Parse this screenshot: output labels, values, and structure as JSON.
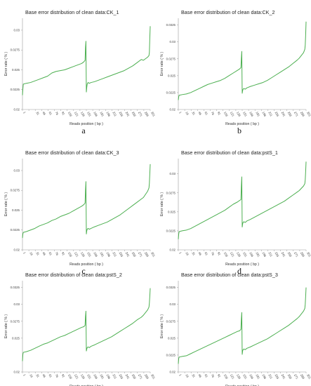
{
  "figure": {
    "panels": [
      {
        "letter": "a"
      },
      {
        "letter": "b"
      },
      {
        "letter": "c"
      },
      {
        "letter": "d"
      },
      {
        "letter": "e"
      },
      {
        "letter": "f"
      }
    ]
  },
  "chart_data": [
    {
      "type": "line",
      "title": "Base error distribution of clean data:CK_1",
      "xlabel": "Reads position ( bp )",
      "ylabel": "Error rate ( % )",
      "xlim": [
        1,
        301
      ],
      "ylim": [
        0.02,
        0.0315
      ],
      "xticks": [
        1,
        16,
        31,
        46,
        61,
        76,
        91,
        106,
        121,
        136,
        151,
        166,
        181,
        196,
        211,
        226,
        241,
        256,
        271,
        286,
        301
      ],
      "xtick_labels": [
        "1",
        "",
        "31",
        "46",
        "61",
        "76",
        "91",
        "106",
        "121",
        "136",
        "151",
        "166",
        "181",
        "196",
        "211",
        "226",
        "241",
        "256",
        "271",
        "286",
        "301"
      ],
      "yticks": [
        0.02,
        0.0225,
        0.025,
        0.0275,
        0.03
      ],
      "ytick_labels": [
        "0.02",
        "0.0225",
        "0.025",
        "0.0275",
        "0.03"
      ],
      "color": "#4caf50",
      "series": [
        {
          "x": [
            1,
            2,
            3,
            10,
            20,
            30,
            40,
            50,
            60,
            70,
            80,
            90,
            100,
            110,
            120,
            130,
            140,
            145,
            148,
            149,
            150,
            151,
            152,
            153,
            155,
            158,
            162,
            170,
            180,
            190,
            200,
            210,
            220,
            230,
            240,
            250,
            260,
            270,
            280,
            285,
            290,
            295,
            298,
            299,
            300,
            301
          ],
          "y": [
            0.0218,
            0.0226,
            0.0232,
            0.0233,
            0.0234,
            0.0236,
            0.0238,
            0.024,
            0.0242,
            0.0246,
            0.0248,
            0.0249,
            0.025,
            0.0252,
            0.0254,
            0.0256,
            0.0258,
            0.026,
            0.0262,
            0.0278,
            0.0286,
            0.0222,
            0.0228,
            0.0232,
            0.0234,
            0.0233,
            0.0234,
            0.0235,
            0.0237,
            0.0239,
            0.0241,
            0.0243,
            0.0245,
            0.0247,
            0.0249,
            0.0252,
            0.0255,
            0.0259,
            0.0263,
            0.0262,
            0.0264,
            0.0266,
            0.0268,
            0.0272,
            0.029,
            0.0305
          ]
        }
      ]
    },
    {
      "type": "line",
      "title": "Base error distribution of clean data:CK_2",
      "xlabel": "Reads position ( bp )",
      "ylabel": "Error rate ( % )",
      "xlim": [
        1,
        301
      ],
      "ylim": [
        0.02,
        0.0335
      ],
      "xticks": [
        1,
        16,
        31,
        46,
        61,
        76,
        91,
        106,
        121,
        136,
        151,
        166,
        181,
        196,
        211,
        226,
        241,
        256,
        271,
        286,
        301
      ],
      "xtick_labels": [
        "1",
        "16",
        "31",
        "46",
        "61",
        "76",
        "91",
        "106",
        "121",
        "136",
        "151",
        "166",
        "181",
        "196",
        "211",
        "226",
        "241",
        "256",
        "271",
        "286",
        "301"
      ],
      "yticks": [
        0.02,
        0.0225,
        0.025,
        0.0275,
        0.03,
        0.0325
      ],
      "ytick_labels": [
        "0.02",
        "0.0225",
        "0.025",
        "0.0275",
        "0.03",
        "0.0325"
      ],
      "color": "#4caf50",
      "series": [
        {
          "x": [
            1,
            2,
            3,
            10,
            20,
            30,
            40,
            50,
            60,
            70,
            80,
            90,
            100,
            110,
            120,
            130,
            140,
            145,
            148,
            149,
            150,
            151,
            152,
            153,
            155,
            158,
            162,
            170,
            180,
            190,
            200,
            210,
            220,
            230,
            240,
            250,
            260,
            270,
            280,
            285,
            290,
            295,
            298,
            299,
            300,
            301
          ],
          "y": [
            0.0214,
            0.0219,
            0.0221,
            0.0222,
            0.0223,
            0.0225,
            0.0228,
            0.0231,
            0.0234,
            0.0237,
            0.0239,
            0.0241,
            0.0243,
            0.0246,
            0.025,
            0.0254,
            0.0258,
            0.026,
            0.0262,
            0.0275,
            0.0286,
            0.0224,
            0.0228,
            0.023,
            0.0231,
            0.023,
            0.0232,
            0.0234,
            0.0236,
            0.0238,
            0.024,
            0.0243,
            0.0247,
            0.0251,
            0.0255,
            0.0259,
            0.0263,
            0.0268,
            0.0273,
            0.0276,
            0.028,
            0.0284,
            0.0289,
            0.0295,
            0.031,
            0.033
          ]
        }
      ]
    },
    {
      "type": "line",
      "title": "Base error distribution of clean data:CK_3",
      "xlabel": "Reads position ( bp )",
      "ylabel": "Error rate ( % )",
      "xlim": [
        1,
        301
      ],
      "ylim": [
        0.02,
        0.0315
      ],
      "xticks": [
        1,
        16,
        31,
        46,
        61,
        76,
        91,
        106,
        121,
        136,
        151,
        166,
        181,
        196,
        211,
        226,
        241,
        256,
        271,
        286,
        301
      ],
      "xtick_labels": [
        "1",
        "16",
        "31",
        "46",
        "61",
        "76",
        "91",
        "106",
        "121",
        "136",
        "151",
        "166",
        "181",
        "196",
        "211",
        "226",
        "241",
        "256",
        "271",
        "286",
        "301"
      ],
      "yticks": [
        0.02,
        0.0225,
        0.025,
        0.0275,
        0.03
      ],
      "ytick_labels": [
        "0.02",
        "0.0225",
        "0.025",
        "0.0275",
        "0.03"
      ],
      "color": "#4caf50",
      "series": [
        {
          "x": [
            1,
            2,
            3,
            10,
            20,
            30,
            40,
            50,
            60,
            70,
            80,
            90,
            100,
            110,
            120,
            130,
            140,
            145,
            148,
            149,
            150,
            151,
            152,
            153,
            155,
            158,
            162,
            170,
            180,
            190,
            200,
            210,
            220,
            230,
            240,
            250,
            260,
            270,
            280,
            285,
            290,
            295,
            298,
            299,
            300,
            301
          ],
          "y": [
            0.0215,
            0.022,
            0.0222,
            0.0223,
            0.0225,
            0.0227,
            0.023,
            0.0232,
            0.0234,
            0.0237,
            0.0239,
            0.0242,
            0.0244,
            0.0246,
            0.0249,
            0.0252,
            0.0255,
            0.0257,
            0.0259,
            0.0275,
            0.0286,
            0.022,
            0.0224,
            0.0226,
            0.0227,
            0.0226,
            0.0227,
            0.0229,
            0.0231,
            0.0233,
            0.0235,
            0.0238,
            0.0241,
            0.0244,
            0.0248,
            0.0252,
            0.0256,
            0.026,
            0.0264,
            0.0266,
            0.027,
            0.0274,
            0.0278,
            0.0284,
            0.0296,
            0.0308
          ]
        }
      ]
    },
    {
      "type": "line",
      "title": "Base error distribution of clean data:pstS_1",
      "xlabel": "Reads position ( bp )",
      "ylabel": "Error rate ( % )",
      "xlim": [
        1,
        301
      ],
      "ylim": [
        0.02,
        0.032
      ],
      "xticks": [
        1,
        16,
        31,
        46,
        61,
        76,
        91,
        106,
        121,
        136,
        151,
        166,
        181,
        196,
        211,
        226,
        241,
        256,
        271,
        286,
        301
      ],
      "xtick_labels": [
        "1",
        "16",
        "31",
        "46",
        "61",
        "76",
        "91",
        "106",
        "121",
        "136",
        "151",
        "166",
        "181",
        "196",
        "211",
        "226",
        "241",
        "256",
        "271",
        "286",
        "301"
      ],
      "yticks": [
        0.02,
        0.0225,
        0.025,
        0.0275,
        0.03
      ],
      "ytick_labels": [
        "0.02",
        "0.0225",
        "0.025",
        "0.0275",
        "0.03"
      ],
      "color": "#4caf50",
      "series": [
        {
          "x": [
            1,
            2,
            3,
            10,
            20,
            30,
            40,
            50,
            60,
            70,
            80,
            90,
            100,
            110,
            120,
            130,
            140,
            145,
            148,
            149,
            150,
            151,
            152,
            153,
            155,
            158,
            162,
            170,
            180,
            190,
            200,
            210,
            220,
            230,
            240,
            250,
            260,
            270,
            280,
            285,
            290,
            295,
            298,
            299,
            300,
            301
          ],
          "y": [
            0.0214,
            0.0221,
            0.0224,
            0.0225,
            0.0226,
            0.0228,
            0.0231,
            0.0234,
            0.0237,
            0.024,
            0.0243,
            0.0246,
            0.0249,
            0.0252,
            0.0256,
            0.026,
            0.0263,
            0.0265,
            0.0266,
            0.0283,
            0.0296,
            0.023,
            0.0234,
            0.0236,
            0.0237,
            0.0236,
            0.0238,
            0.024,
            0.0243,
            0.0246,
            0.0249,
            0.0252,
            0.0255,
            0.0258,
            0.0261,
            0.0264,
            0.0268,
            0.0272,
            0.0276,
            0.0278,
            0.0281,
            0.0284,
            0.0287,
            0.0292,
            0.0303,
            0.0316
          ]
        }
      ]
    },
    {
      "type": "line",
      "title": "Base error distribution of clean data:pstS_2",
      "xlabel": "Reads position ( bp )",
      "ylabel": "Error rate ( % )",
      "xlim": [
        1,
        301
      ],
      "ylim": [
        0.02,
        0.0335
      ],
      "xticks": [
        1,
        16,
        31,
        46,
        61,
        76,
        91,
        106,
        121,
        136,
        151,
        166,
        181,
        196,
        211,
        226,
        241,
        256,
        271,
        286,
        301
      ],
      "xtick_labels": [
        "1",
        "16",
        "31",
        "46",
        "61",
        "76",
        "91",
        "106",
        "121",
        "136",
        "151",
        "166",
        "181",
        "196",
        "211",
        "226",
        "241",
        "256",
        "271",
        "286",
        "301"
      ],
      "yticks": [
        0.02,
        0.025,
        0.0275,
        0.03,
        0.0325
      ],
      "ytick_labels": [
        "0.02",
        "0.025",
        "0.0275",
        "0.03",
        "0.0325"
      ],
      "color": "#4caf50",
      "series": [
        {
          "x": [
            1,
            2,
            3,
            10,
            20,
            30,
            40,
            50,
            60,
            70,
            80,
            90,
            100,
            110,
            120,
            130,
            140,
            145,
            148,
            149,
            150,
            151,
            152,
            153,
            155,
            158,
            162,
            170,
            180,
            190,
            200,
            210,
            220,
            230,
            240,
            250,
            260,
            270,
            280,
            285,
            290,
            295,
            298,
            299,
            300,
            301
          ],
          "y": [
            0.0216,
            0.0226,
            0.0229,
            0.023,
            0.0232,
            0.0235,
            0.0238,
            0.0241,
            0.0243,
            0.0246,
            0.0249,
            0.0252,
            0.0254,
            0.0257,
            0.026,
            0.0263,
            0.0266,
            0.0267,
            0.0269,
            0.0282,
            0.029,
            0.0231,
            0.0234,
            0.0236,
            0.0237,
            0.0236,
            0.0238,
            0.024,
            0.0243,
            0.0246,
            0.0249,
            0.0252,
            0.0256,
            0.026,
            0.0264,
            0.0268,
            0.0272,
            0.0277,
            0.0281,
            0.0284,
            0.0288,
            0.0292,
            0.0296,
            0.0302,
            0.0312,
            0.0324
          ]
        }
      ]
    },
    {
      "type": "line",
      "title": "Base error distribution of clean data:pstS_3",
      "xlabel": "Reads position ( bp )",
      "ylabel": "Error rate ( % )",
      "xlim": [
        1,
        301
      ],
      "ylim": [
        0.02,
        0.0335
      ],
      "xticks": [
        1,
        16,
        31,
        46,
        61,
        76,
        91,
        106,
        121,
        136,
        151,
        166,
        181,
        196,
        211,
        226,
        241,
        256,
        271,
        286,
        301
      ],
      "xtick_labels": [
        "1",
        "16",
        "31",
        "46",
        "61",
        "76",
        "91",
        "106",
        "121",
        "136",
        "151",
        "166",
        "181",
        "196",
        "211",
        "226",
        "241",
        "256",
        "271",
        "286",
        "301"
      ],
      "yticks": [
        0.02,
        0.0225,
        0.025,
        0.0275,
        0.03,
        0.0325
      ],
      "ytick_labels": [
        "0.02",
        "0.0225",
        "0.025",
        "0.0275",
        "0.03",
        "0.0325"
      ],
      "color": "#4caf50",
      "series": [
        {
          "x": [
            1,
            2,
            3,
            10,
            20,
            30,
            40,
            50,
            60,
            70,
            80,
            90,
            100,
            110,
            120,
            130,
            140,
            145,
            148,
            149,
            150,
            151,
            152,
            153,
            155,
            158,
            162,
            170,
            180,
            190,
            200,
            210,
            220,
            230,
            240,
            250,
            260,
            270,
            280,
            285,
            290,
            295,
            298,
            299,
            300,
            301
          ],
          "y": [
            0.0212,
            0.022,
            0.0222,
            0.0223,
            0.0224,
            0.0227,
            0.023,
            0.0233,
            0.0236,
            0.0239,
            0.0242,
            0.0245,
            0.0248,
            0.0251,
            0.0254,
            0.0257,
            0.026,
            0.0261,
            0.0263,
            0.0278,
            0.0288,
            0.0226,
            0.0231,
            0.0233,
            0.0234,
            0.0233,
            0.0235,
            0.0237,
            0.024,
            0.0243,
            0.0246,
            0.0249,
            0.0253,
            0.0257,
            0.0261,
            0.0265,
            0.0269,
            0.0274,
            0.0279,
            0.0282,
            0.0286,
            0.029,
            0.0294,
            0.03,
            0.0312,
            0.0325
          ]
        }
      ]
    }
  ]
}
